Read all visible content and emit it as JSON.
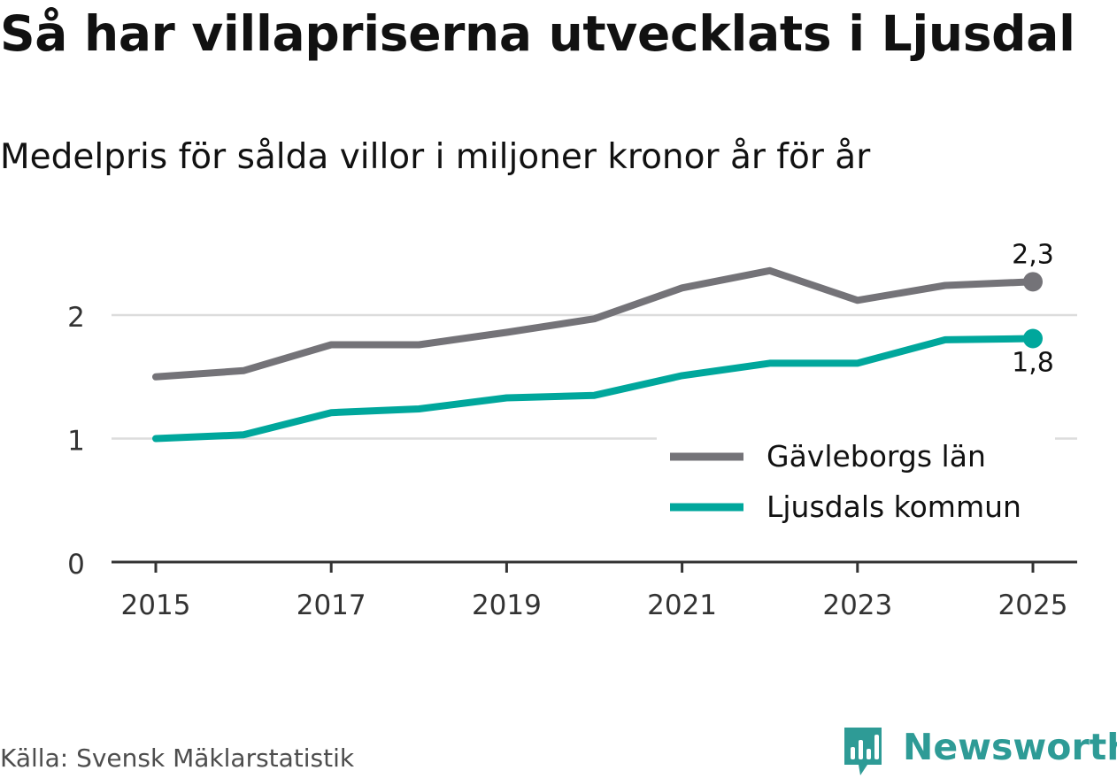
{
  "title": "Så har villapriserna utvecklats i Ljusdal",
  "subtitle": "Medelpris för sålda villor i miljoner kronor år för år",
  "source": "Källa: Svensk Mäklarstatistik",
  "brand": "Newsworthy",
  "colors": {
    "gavleborg": "#747378",
    "ljusdal": "#00a79c",
    "grid": "#dcdcdc",
    "axis": "#333333",
    "brand": "#2e9b96"
  },
  "chart_data": {
    "type": "line",
    "x": [
      2015,
      2016,
      2017,
      2018,
      2019,
      2020,
      2021,
      2022,
      2023,
      2024,
      2025
    ],
    "xticks": [
      "2015",
      "2017",
      "2019",
      "2021",
      "2023",
      "2025"
    ],
    "yticks": [
      "0",
      "1",
      "2"
    ],
    "ylim": [
      0,
      2.5
    ],
    "xlabel": "",
    "ylabel": "",
    "series": [
      {
        "name": "Gävleborgs län",
        "color": "#747378",
        "end_label": "2,3",
        "values": [
          1.5,
          1.55,
          1.76,
          1.76,
          1.86,
          1.97,
          2.22,
          2.36,
          2.12,
          2.24,
          2.27
        ]
      },
      {
        "name": "Ljusdals kommun",
        "color": "#00a79c",
        "end_label": "1,8",
        "values": [
          1.0,
          1.03,
          1.21,
          1.24,
          1.33,
          1.35,
          1.51,
          1.61,
          1.61,
          1.8,
          1.81
        ]
      }
    ],
    "legend_position": "bottom-right"
  }
}
